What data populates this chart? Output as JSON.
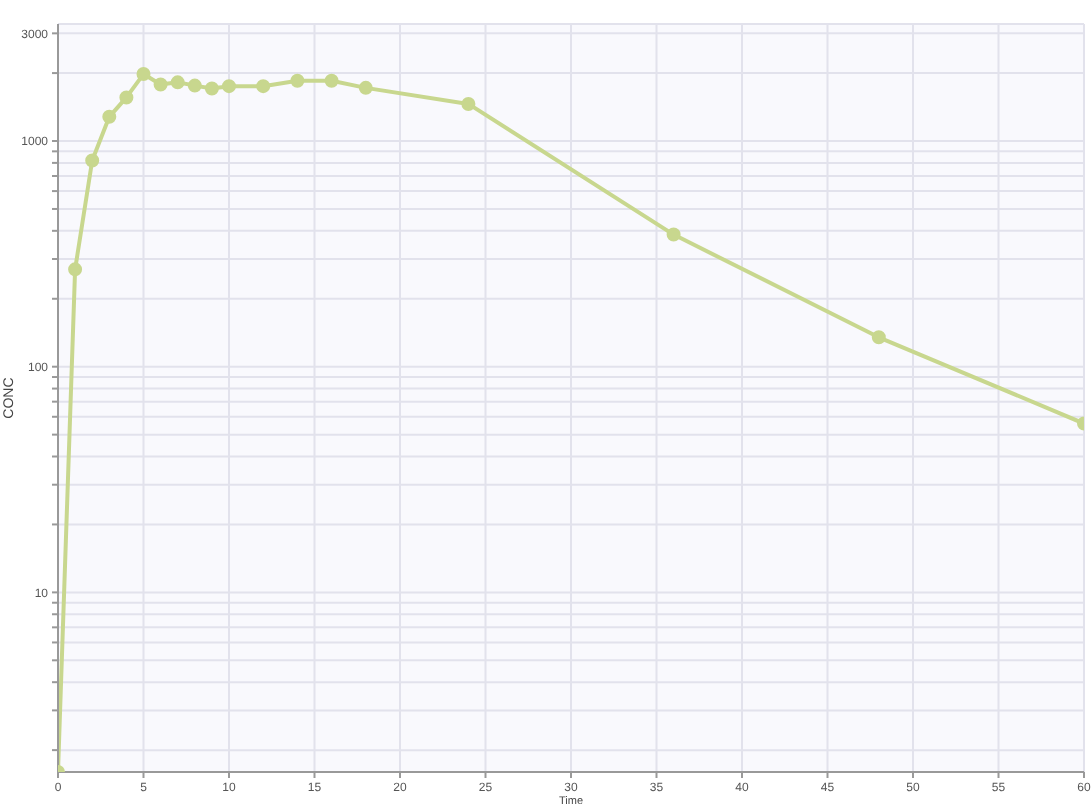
{
  "chart_data": {
    "type": "line",
    "xlabel": "Time",
    "ylabel": "CONC",
    "x": [
      0,
      1,
      2,
      3,
      4,
      5,
      6,
      7,
      8,
      9,
      10,
      12,
      14,
      16,
      18,
      24,
      36,
      48,
      60
    ],
    "series": [
      {
        "color": "#c8d78e",
        "values": [
          1.6,
          270,
          820,
          1280,
          1560,
          1980,
          1780,
          1820,
          1760,
          1710,
          1750,
          1750,
          1850,
          1850,
          1720,
          1460,
          385,
          135,
          56
        ]
      }
    ],
    "xlim": [
      0,
      60
    ],
    "xticks": [
      0,
      5,
      10,
      15,
      20,
      25,
      30,
      35,
      40,
      45,
      50,
      55,
      60
    ],
    "ylim": [
      1.6,
      3300
    ],
    "yticks": [
      {
        "value": 2,
        "label": null
      },
      {
        "value": 3,
        "label": null
      },
      {
        "value": 4,
        "label": null
      },
      {
        "value": 5,
        "label": null
      },
      {
        "value": 6,
        "label": null
      },
      {
        "value": 7,
        "label": null
      },
      {
        "value": 8,
        "label": null
      },
      {
        "value": 9,
        "label": null
      },
      10,
      {
        "value": 20,
        "label": null
      },
      {
        "value": 30,
        "label": null
      },
      {
        "value": 40,
        "label": null
      },
      {
        "value": 50,
        "label": null
      },
      {
        "value": 60,
        "label": null
      },
      {
        "value": 70,
        "label": null
      },
      {
        "value": 80,
        "label": null
      },
      {
        "value": 90,
        "label": null
      },
      100,
      {
        "value": 200,
        "label": null
      },
      {
        "value": 300,
        "label": null
      },
      {
        "value": 400,
        "label": null
      },
      {
        "value": 500,
        "label": null
      },
      {
        "value": 600,
        "label": null
      },
      {
        "value": 700,
        "label": null
      },
      {
        "value": 800,
        "label": null
      },
      {
        "value": 900,
        "label": null
      },
      1000,
      {
        "value": 2000,
        "label": null
      },
      3000
    ],
    "log": "y",
    "grid": true,
    "marker": "circle"
  }
}
